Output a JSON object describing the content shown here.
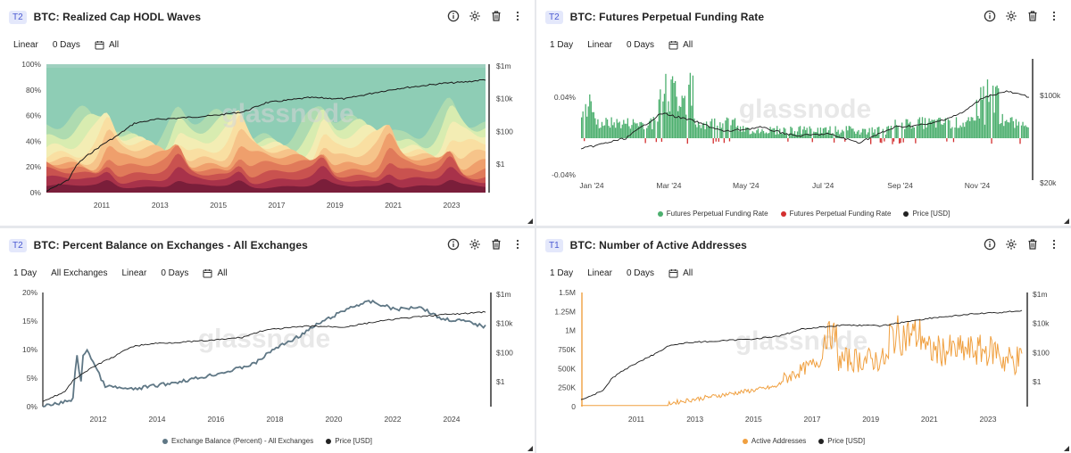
{
  "panels": [
    {
      "tier": "T2",
      "title": "BTC: Realized Cap HODL Waves",
      "options": [
        "Linear",
        "0 Days",
        "All"
      ],
      "y_left_ticks": [
        "100%",
        "80%",
        "60%",
        "40%",
        "20%",
        "0%"
      ],
      "y_right_ticks": [
        "$1m",
        "$10k",
        "$100",
        "$1"
      ],
      "x_ticks": [
        "2011",
        "2013",
        "2015",
        "2017",
        "2019",
        "2021",
        "2023"
      ],
      "legend": []
    },
    {
      "tier": "T2",
      "title": "BTC: Futures Perpetual Funding Rate",
      "options": [
        "1 Day",
        "Linear",
        "0 Days",
        "All"
      ],
      "y_left_ticks": [
        "0.04%",
        "-0.04%"
      ],
      "y_right_ticks": [
        "$100k",
        "$20k"
      ],
      "x_ticks": [
        "Jan '24",
        "Mar '24",
        "May '24",
        "Jul '24",
        "Sep '24",
        "Nov '24"
      ],
      "legend": [
        {
          "label": "Futures Perpetual Funding Rate",
          "color": "#4caf6e"
        },
        {
          "label": "Futures Perpetual Funding Rate",
          "color": "#d32f2f"
        },
        {
          "label": "Price [USD]",
          "color": "#222222"
        }
      ]
    },
    {
      "tier": "T2",
      "title": "BTC: Percent Balance on Exchanges - All Exchanges",
      "options": [
        "1 Day",
        "All Exchanges",
        "Linear",
        "0 Days",
        "All"
      ],
      "y_left_ticks": [
        "20%",
        "15%",
        "10%",
        "5%",
        "0%"
      ],
      "y_right_ticks": [
        "$1m",
        "$10k",
        "$100",
        "$1"
      ],
      "x_ticks": [
        "2012",
        "2014",
        "2016",
        "2018",
        "2020",
        "2022",
        "2024"
      ],
      "legend": [
        {
          "label": "Exchange Balance (Percent) - All Exchanges",
          "color": "#5f7785"
        },
        {
          "label": "Price [USD]",
          "color": "#222222"
        }
      ]
    },
    {
      "tier": "T1",
      "title": "BTC: Number of Active Addresses",
      "options": [
        "1 Day",
        "Linear",
        "0 Days",
        "All"
      ],
      "y_left_ticks": [
        "1.5M",
        "1.25M",
        "1M",
        "750K",
        "500K",
        "250K",
        "0"
      ],
      "y_right_ticks": [
        "$1m",
        "$10k",
        "$100",
        "$1"
      ],
      "x_ticks": [
        "2011",
        "2013",
        "2015",
        "2017",
        "2019",
        "2021",
        "2023"
      ],
      "legend": [
        {
          "label": "Active Addresses",
          "color": "#f0a040"
        },
        {
          "label": "Price [USD]",
          "color": "#222222"
        }
      ]
    }
  ],
  "watermark": "glassnode",
  "colors": {
    "price": "#1a1a1a",
    "funding_pos": "#4caf6e",
    "funding_neg": "#d32f2f",
    "exchange_balance": "#5f7785",
    "active_addresses": "#f0a040",
    "hodl_bands": [
      "#7a1e3a",
      "#a8324a",
      "#c9524f",
      "#e07a5a",
      "#ef9f6c",
      "#f6c48a",
      "#f9dfa2",
      "#f3edb4",
      "#d8ecb0",
      "#aedbb0",
      "#8ecdb5"
    ]
  },
  "icons": [
    "info-icon",
    "gear-icon",
    "trash-icon",
    "more-icon",
    "calendar-icon"
  ]
}
